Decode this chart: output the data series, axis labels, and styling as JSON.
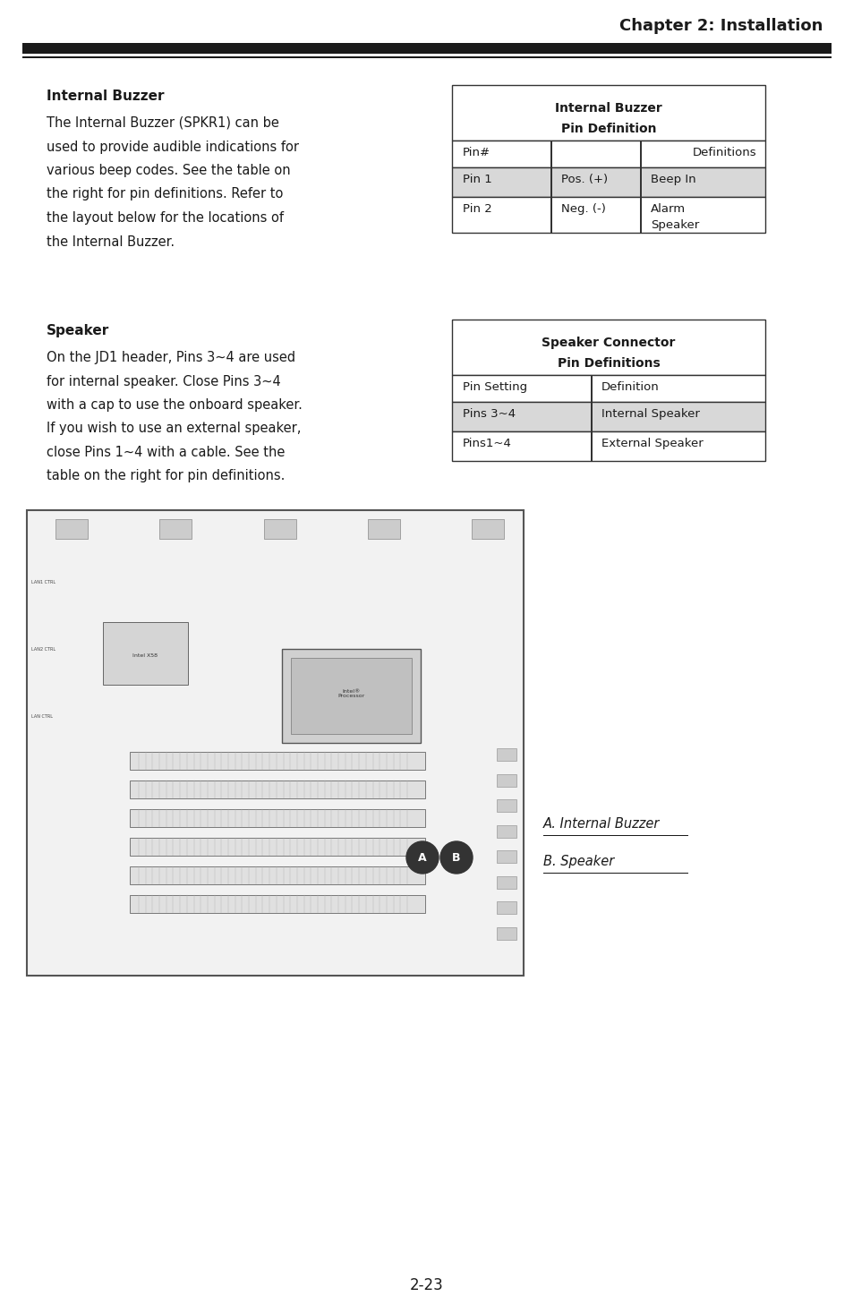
{
  "page_width": 9.54,
  "page_height": 14.58,
  "bg_color": "#ffffff",
  "header_text": "Chapter 2: Installation",
  "header_font_size": 13,
  "header_bar_color": "#1a1a1a",
  "section1_title": "Internal Buzzer",
  "section1_body": [
    "The Internal Buzzer (SPKR1) can be",
    "used to provide audible indications for",
    "various beep codes. See the table on",
    "the right for pin definitions. Refer to",
    "the layout below for the locations of",
    "the Internal Buzzer."
  ],
  "table1_title_line1": "Internal Buzzer",
  "table1_title_line2": "Pin Definition",
  "table1_header_col1": "Pin#",
  "table1_header_col2": "Definitions",
  "table1_rows": [
    [
      "Pin 1",
      "Pos. (+)",
      "Beep In"
    ],
    [
      "Pin 2",
      "Neg. (-)",
      "Alarm\nSpeaker"
    ]
  ],
  "table1_row_shaded": [
    0
  ],
  "section2_title": "Speaker",
  "section2_body": [
    "On the JD1 header, Pins 3~4 are used",
    "for internal speaker. Close Pins 3~4",
    "with a cap to use the onboard speaker.",
    "If you wish to use an external speaker,",
    "close Pins 1~4 with a cable. See the",
    "table on the right for pin definitions."
  ],
  "table2_title_line1": "Speaker Connector",
  "table2_title_line2": "Pin Definitions",
  "table2_header": [
    "Pin Setting",
    "Definition"
  ],
  "table2_rows": [
    [
      "Pins 3~4",
      "Internal Speaker"
    ],
    [
      "Pins1~4",
      "External Speaker"
    ]
  ],
  "table2_row_shaded": [
    0
  ],
  "annotation_a": "A. Internal Buzzer",
  "annotation_b": "B. Speaker",
  "footer_text": "2-23",
  "text_color": "#1a1a1a",
  "shaded_color": "#d8d8d8",
  "table_border_color": "#333333",
  "body_font_size": 10.5,
  "title_font_size": 11,
  "table_font_size": 9.5
}
